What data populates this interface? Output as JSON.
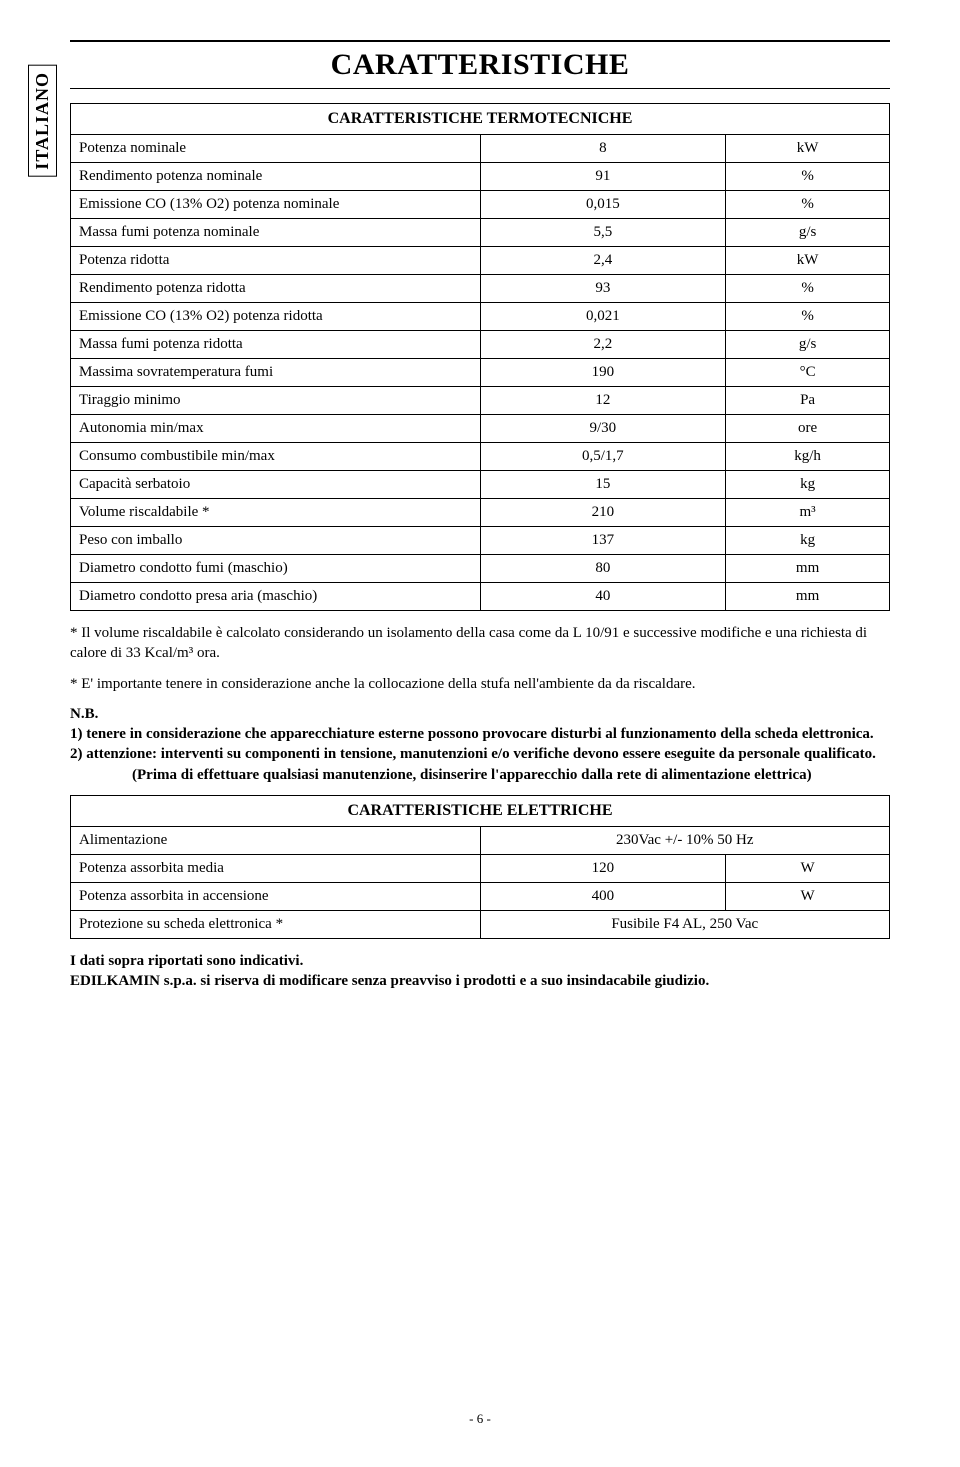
{
  "side_tab": "ITALIANO",
  "main_title": "CARATTERISTICHE",
  "table1": {
    "header": "CARATTERISTICHE TERMOTECNICHE",
    "rows": [
      {
        "label": "Potenza nominale",
        "val": "8",
        "unit": "kW"
      },
      {
        "label": "Rendimento potenza nominale",
        "val": "91",
        "unit": "%"
      },
      {
        "label": "Emissione CO (13% O2) potenza nominale",
        "val": "0,015",
        "unit": "%"
      },
      {
        "label": "Massa fumi potenza nominale",
        "val": "5,5",
        "unit": "g/s"
      },
      {
        "label": "Potenza ridotta",
        "val": "2,4",
        "unit": "kW"
      },
      {
        "label": "Rendimento potenza ridotta",
        "val": "93",
        "unit": "%"
      },
      {
        "label": "Emissione CO (13% O2) potenza ridotta",
        "val": "0,021",
        "unit": "%"
      },
      {
        "label": "Massa fumi potenza ridotta",
        "val": "2,2",
        "unit": "g/s"
      },
      {
        "label": "Massima sovratemperatura fumi",
        "val": "190",
        "unit": "°C"
      },
      {
        "label": "Tiraggio minimo",
        "val": "12",
        "unit": "Pa"
      },
      {
        "label": "Autonomia min/max",
        "val": "9/30",
        "unit": "ore"
      },
      {
        "label": "Consumo combustibile min/max",
        "val": "0,5/1,7",
        "unit": "kg/h"
      },
      {
        "label": "Capacità serbatoio",
        "val": "15",
        "unit": "kg"
      },
      {
        "label": "Volume riscaldabile *",
        "val": "210",
        "unit": "m³"
      },
      {
        "label": "Peso con imballo",
        "val": "137",
        "unit": "kg"
      },
      {
        "label": "Diametro condotto fumi (maschio)",
        "val": "80",
        "unit": "mm"
      },
      {
        "label": "Diametro condotto presa aria (maschio)",
        "val": "40",
        "unit": "mm"
      }
    ]
  },
  "notes_block1": {
    "p1": "* Il volume riscaldabile è calcolato considerando un isolamento della casa come da L 10/91 e successive modifiche e una richiesta di calore di 33 Kcal/m³ ora.",
    "p2": "* E' importante tenere in considerazione anche la collocazione della stufa nell'ambiente da da riscaldare.",
    "nb": "N.B.",
    "nb1": "1) tenere in considerazione che apparecchiature esterne possono provocare disturbi al funzionamento della scheda elettronica.",
    "nb2": "2) attenzione: interventi su componenti in tensione, manutenzioni e/o verifiche devono essere eseguite da personale qualificato.",
    "nb3": "(Prima di effettuare qualsiasi manutenzione, disinserire l'apparecchio dalla rete di alimentazione elettrica)"
  },
  "table2": {
    "header": "CARATTERISTICHE ELETTRICHE",
    "rows": [
      {
        "label": "Alimentazione",
        "val": "230Vac +/- 10% 50 Hz",
        "unit": ""
      },
      {
        "label": "Potenza assorbita media",
        "val": "120",
        "unit": "W"
      },
      {
        "label": "Potenza assorbita in accensione",
        "val": "400",
        "unit": "W"
      },
      {
        "label": "Protezione su scheda elettronica *",
        "val": "Fusibile F4 AL, 250 Vac",
        "unit": ""
      }
    ]
  },
  "notes_block2": {
    "p1": "I dati sopra riportati sono indicativi.",
    "p2": "EDILKAMIN s.p.a. si riserva di modificare senza preavviso i prodotti e a suo insindacabile giudizio."
  },
  "page_number": "- 6 -"
}
